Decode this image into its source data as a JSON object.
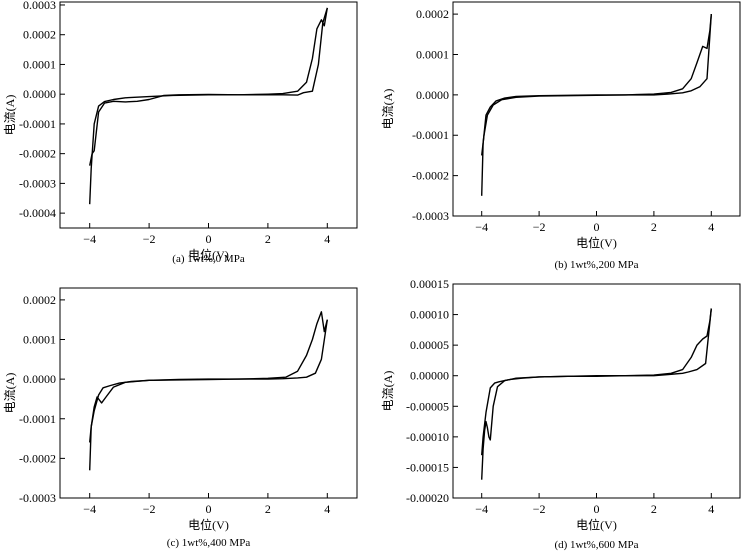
{
  "chart_data": [
    {
      "type": "line",
      "caption": "(a) 1wt%,0 MPa",
      "xlabel": "电位(V)",
      "ylabel": "电流(A)",
      "xlim": [
        -5,
        5
      ],
      "ylim": [
        -0.00045,
        0.00031
      ],
      "xticks": [
        -4,
        -2,
        0,
        2,
        4
      ],
      "xtick_labels": [
        "−4",
        "−2",
        "0",
        "2",
        "4"
      ],
      "yticks": [
        0.0003,
        0.0002,
        0.0001,
        0.0,
        -0.0001,
        -0.0002,
        -0.0003,
        -0.0004
      ],
      "ytick_labels": [
        "0.0003",
        "0.0002",
        "0.0001",
        "0.0000",
        "-0.0001",
        "-0.0002",
        "-0.0003",
        "-0.0004"
      ],
      "grid": false,
      "series": [
        {
          "x": [
            -4.0,
            -3.95,
            -3.85,
            -3.7,
            -3.5,
            -3.2,
            -2.8,
            -2.0,
            -1.2,
            0,
            1.0,
            2.0,
            2.5,
            3.0,
            3.3,
            3.5,
            3.65,
            3.8,
            3.9,
            3.95,
            4.0
          ],
          "y": [
            -0.00037,
            -0.00025,
            -0.0001,
            -4e-05,
            -2.5e-05,
            -1.8e-05,
            -1.2e-05,
            -8e-06,
            -4e-06,
            -2e-06,
            -2e-06,
            0.0,
            2e-06,
            1e-05,
            4e-05,
            0.00012,
            0.00022,
            0.00025,
            0.00023,
            0.00026,
            0.00029
          ]
        },
        {
          "x": [
            4.0,
            3.85,
            3.7,
            3.5,
            3.2,
            3.0,
            2.5,
            2.0,
            1.0,
            0,
            -1.0,
            -1.5,
            -2.0,
            -2.4,
            -2.8,
            -3.2,
            -3.5,
            -3.7,
            -3.85,
            -3.92,
            -4.0
          ],
          "y": [
            0.00029,
            0.00024,
            0.0001,
            1e-05,
            5e-06,
            -3e-06,
            -2e-06,
            -2e-06,
            -2e-06,
            -1e-06,
            -2e-06,
            -4e-06,
            -1.8e-05,
            -2.4e-05,
            -2.6e-05,
            -2.4e-05,
            -3e-05,
            -6e-05,
            -0.00019,
            -0.0002,
            -0.00024
          ]
        }
      ]
    },
    {
      "type": "line",
      "caption": "(b) 1wt%,200 MPa",
      "xlabel": "电位(V)",
      "ylabel": "电流(A)",
      "xlim": [
        -5,
        5
      ],
      "ylim": [
        -0.0003,
        0.00023
      ],
      "xticks": [
        -4,
        -2,
        0,
        2,
        4
      ],
      "xtick_labels": [
        "−4",
        "−2",
        "0",
        "2",
        "4"
      ],
      "yticks": [
        0.0002,
        0.0001,
        0.0,
        -0.0001,
        -0.0002,
        -0.0003
      ],
      "ytick_labels": [
        "0.0002",
        "0.0001",
        "0.0000",
        "-0.0001",
        "-0.0002",
        "-0.0003"
      ],
      "grid": false,
      "series": [
        {
          "x": [
            -4.0,
            -3.95,
            -3.85,
            -3.7,
            -3.5,
            -3.2,
            -2.8,
            -2.0,
            -1.0,
            0,
            1.0,
            2.0,
            2.6,
            3.0,
            3.3,
            3.5,
            3.7,
            3.85,
            3.95,
            4.0
          ],
          "y": [
            -0.00025,
            -0.00012,
            -5e-05,
            -3e-05,
            -1.5e-05,
            -8e-06,
            -4e-06,
            -2e-06,
            -1e-06,
            0.0,
            0.0,
            2e-06,
            6e-06,
            1.5e-05,
            4e-05,
            8e-05,
            0.00012,
            0.000115,
            0.00016,
            0.0002
          ]
        },
        {
          "x": [
            4.0,
            3.85,
            3.6,
            3.3,
            3.0,
            2.5,
            2.0,
            1.0,
            0,
            -1.0,
            -2.0,
            -2.8,
            -3.3,
            -3.6,
            -3.8,
            -3.92,
            -4.0
          ],
          "y": [
            0.0002,
            4e-05,
            2e-05,
            1e-05,
            5e-06,
            2e-06,
            0.0,
            0.0,
            -1e-06,
            -2e-06,
            -3e-06,
            -6e-06,
            -1.2e-05,
            -2.5e-05,
            -5e-05,
            -0.0001,
            -0.00015
          ]
        }
      ]
    },
    {
      "type": "line",
      "caption": "(c) 1wt%,400 MPa",
      "xlabel": "电位(V)",
      "ylabel": "电流(A)",
      "xlim": [
        -5,
        5
      ],
      "ylim": [
        -0.0003,
        0.00023
      ],
      "xticks": [
        -4,
        -2,
        0,
        2,
        4
      ],
      "xtick_labels": [
        "−4",
        "−2",
        "0",
        "2",
        "4"
      ],
      "yticks": [
        0.0002,
        0.0001,
        0.0,
        -0.0001,
        -0.0002,
        -0.0003
      ],
      "ytick_labels": [
        "0.0002",
        "0.0001",
        "0.0000",
        "-0.0001",
        "-0.0002",
        "-0.0003"
      ],
      "grid": false,
      "series": [
        {
          "x": [
            -4.0,
            -3.95,
            -3.85,
            -3.75,
            -3.6,
            -3.45,
            -3.2,
            -2.8,
            -2.0,
            -1.0,
            0,
            1.0,
            2.0,
            2.6,
            3.0,
            3.3,
            3.5,
            3.65,
            3.8,
            3.9,
            4.0
          ],
          "y": [
            -0.00023,
            -0.00012,
            -7e-05,
            -4.5e-05,
            -6e-05,
            -4.5e-05,
            -2e-05,
            -8e-06,
            -3e-06,
            -1e-06,
            0.0,
            0.0,
            2e-06,
            5e-06,
            2e-05,
            6e-05,
            0.0001,
            0.00014,
            0.00017,
            0.00012,
            0.00015
          ]
        },
        {
          "x": [
            4.0,
            3.8,
            3.6,
            3.3,
            3.0,
            2.5,
            2.0,
            1.0,
            0,
            -1.0,
            -2.0,
            -2.6,
            -3.0,
            -3.3,
            -3.55,
            -3.7,
            -3.85,
            -3.95,
            -4.0
          ],
          "y": [
            0.00015,
            5e-05,
            1.5e-05,
            5e-06,
            3e-06,
            1e-06,
            0.0,
            0.0,
            -1e-06,
            -2e-06,
            -3e-06,
            -6e-06,
            -1e-05,
            -1.6e-05,
            -2.2e-05,
            -4e-05,
            -8e-05,
            -0.00012,
            -0.00016
          ]
        }
      ]
    },
    {
      "type": "line",
      "caption": "(d) 1wt%,600 MPa",
      "xlabel": "电位(V)",
      "ylabel": "电流(A)",
      "xlim": [
        -5,
        5
      ],
      "ylim": [
        -0.0002,
        0.00015
      ],
      "xticks": [
        -4,
        -2,
        0,
        2,
        4
      ],
      "xtick_labels": [
        "−4",
        "−2",
        "0",
        "2",
        "4"
      ],
      "yticks": [
        0.00015,
        0.0001,
        5e-05,
        0.0,
        -5e-05,
        -0.0001,
        -0.00015,
        -0.0002
      ],
      "ytick_labels": [
        "0.00015",
        "0.00010",
        "0.00005",
        "0.00000",
        "-0.00005",
        "-0.00010",
        "-0.00015",
        "-0.00020"
      ],
      "grid": false,
      "series": [
        {
          "x": [
            -4.0,
            -3.95,
            -3.9,
            -3.85,
            -3.8,
            -3.75,
            -3.7,
            -3.6,
            -3.45,
            -3.2,
            -2.8,
            -2.0,
            -1.0,
            0,
            1.0,
            2.0,
            2.6,
            3.0,
            3.3,
            3.5,
            3.7,
            3.85,
            3.95,
            4.0
          ],
          "y": [
            -0.00017,
            -0.00012,
            -9e-05,
            -7.5e-05,
            -8.5e-05,
            -0.0001,
            -0.000105,
            -5e-05,
            -1.8e-05,
            -8e-06,
            -4e-06,
            -2e-06,
            -1e-06,
            0.0,
            0.0,
            1e-06,
            4e-06,
            1e-05,
            3e-05,
            5e-05,
            6e-05,
            6.5e-05,
            9e-05,
            0.00011
          ]
        },
        {
          "x": [
            4.0,
            3.8,
            3.5,
            3.2,
            3.0,
            2.5,
            2.0,
            1.0,
            0,
            -1.0,
            -2.0,
            -2.6,
            -3.0,
            -3.2,
            -3.4,
            -3.55,
            -3.7,
            -3.85,
            -3.95,
            -4.0
          ],
          "y": [
            0.00011,
            2e-05,
            1e-05,
            6e-06,
            4e-06,
            2e-06,
            0.0,
            0.0,
            -1e-06,
            -1e-06,
            -2e-06,
            -4e-06,
            -6e-06,
            -8e-06,
            -1e-05,
            -1.2e-05,
            -2e-05,
            -6e-05,
            -0.0001,
            -0.00013
          ]
        }
      ]
    }
  ]
}
